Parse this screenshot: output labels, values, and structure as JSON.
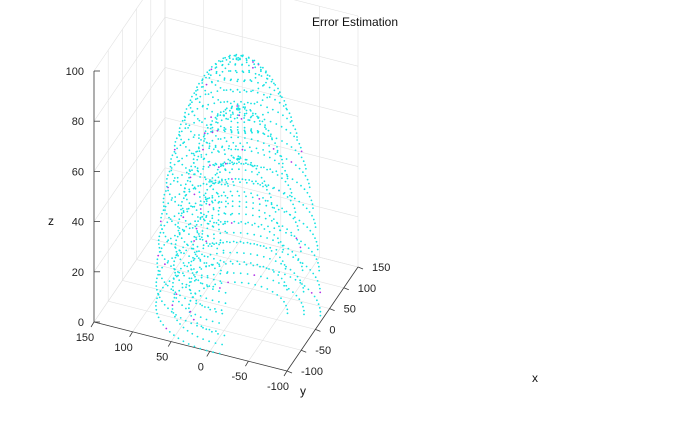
{
  "chart_data": {
    "type": "scatter",
    "title": "Error Estimation",
    "xlabel": "x",
    "ylabel": "y",
    "zlabel": "z",
    "xlim": [
      -100,
      150
    ],
    "ylim": [
      -100,
      150
    ],
    "zlim": [
      0,
      100
    ],
    "x_ticks": [
      "-100",
      "-50",
      "0",
      "50",
      "100",
      "150"
    ],
    "y_ticks": [
      "-100",
      "-50",
      "0",
      "50",
      "100",
      "150"
    ],
    "z_ticks": [
      "0",
      "20",
      "40",
      "60",
      "80",
      "100"
    ],
    "grid": true,
    "series": [
      {
        "shape": "hemisphere",
        "center": [
          0,
          0,
          0
        ],
        "radius": 60,
        "color": "#16e3e3"
      },
      {
        "shape": "hemisphere",
        "center": [
          0,
          0,
          0
        ],
        "radius": 80,
        "color": "#16e3e3"
      },
      {
        "shape": "hemisphere",
        "center": [
          0,
          0,
          0
        ],
        "radius": 100,
        "color": "#16e3e3"
      }
    ],
    "outlier_color": "#b233e6"
  }
}
